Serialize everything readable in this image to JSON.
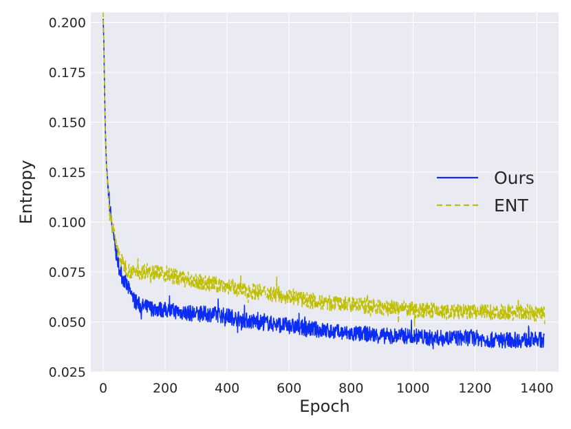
{
  "chart_data": {
    "type": "line",
    "title": "",
    "xlabel": "Epoch",
    "ylabel": "Entropy",
    "xlim": [
      -40,
      1470
    ],
    "ylim": [
      0.025,
      0.205
    ],
    "x_ticks": [
      0,
      200,
      400,
      600,
      800,
      1000,
      1200,
      1400
    ],
    "x_tick_labels": [
      "0",
      "200",
      "400",
      "600",
      "800",
      "1000",
      "1200",
      "1400"
    ],
    "y_ticks": [
      0.025,
      0.05,
      0.075,
      0.1,
      0.125,
      0.15,
      0.175,
      0.2
    ],
    "y_tick_labels": [
      "0.025",
      "0.050",
      "0.075",
      "0.100",
      "0.125",
      "0.150",
      "0.175",
      "0.200"
    ],
    "grid": true,
    "legend_position": "right",
    "series": [
      {
        "name": "Ours",
        "color": "#0a2cf5",
        "style": "solid",
        "x": [
          0,
          2,
          4,
          6,
          8,
          10,
          15,
          20,
          30,
          40,
          50,
          60,
          80,
          100,
          120,
          150,
          200,
          250,
          300,
          350,
          400,
          450,
          500,
          550,
          600,
          650,
          700,
          750,
          800,
          850,
          900,
          950,
          1000,
          1050,
          1100,
          1150,
          1200,
          1250,
          1300,
          1350,
          1400,
          1425
        ],
        "y": [
          0.203,
          0.19,
          0.17,
          0.152,
          0.14,
          0.13,
          0.118,
          0.11,
          0.096,
          0.086,
          0.078,
          0.073,
          0.067,
          0.061,
          0.058,
          0.057,
          0.056,
          0.055,
          0.054,
          0.054,
          0.053,
          0.051,
          0.05,
          0.049,
          0.048,
          0.047,
          0.046,
          0.045,
          0.044,
          0.044,
          0.043,
          0.043,
          0.043,
          0.042,
          0.042,
          0.042,
          0.042,
          0.041,
          0.041,
          0.041,
          0.041,
          0.041
        ],
        "noise": 0.004
      },
      {
        "name": "ENT",
        "color": "#bfbf00",
        "style": "dashed",
        "x": [
          0,
          2,
          4,
          6,
          8,
          10,
          15,
          20,
          30,
          40,
          50,
          60,
          80,
          100,
          120,
          150,
          200,
          250,
          300,
          350,
          400,
          450,
          500,
          550,
          600,
          650,
          700,
          750,
          800,
          850,
          900,
          950,
          1000,
          1050,
          1100,
          1150,
          1200,
          1250,
          1300,
          1350,
          1400,
          1425
        ],
        "y": [
          0.204,
          0.19,
          0.17,
          0.152,
          0.14,
          0.13,
          0.117,
          0.108,
          0.098,
          0.09,
          0.084,
          0.08,
          0.076,
          0.075,
          0.075,
          0.076,
          0.074,
          0.072,
          0.07,
          0.069,
          0.068,
          0.066,
          0.065,
          0.064,
          0.063,
          0.061,
          0.06,
          0.059,
          0.059,
          0.058,
          0.057,
          0.057,
          0.056,
          0.056,
          0.055,
          0.055,
          0.055,
          0.055,
          0.055,
          0.055,
          0.054,
          0.055
        ],
        "noise": 0.004
      }
    ]
  }
}
